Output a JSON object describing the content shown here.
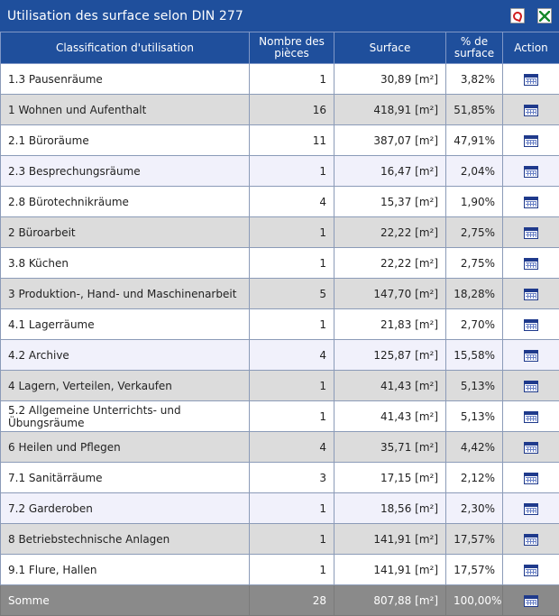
{
  "header": {
    "title": "Utilisation des surface selon DIN 277"
  },
  "columns": {
    "classification": "Classification d'utilisation",
    "count_line1": "Nombre des",
    "count_line2": "pièces",
    "surface": "Surface",
    "percent_line1": "% de",
    "percent_line2": "surface",
    "action": "Action"
  },
  "rows": [
    {
      "label": "1.3 Pausenräume",
      "count": "1",
      "surface": "30,89 [m²]",
      "percent": "3,82%"
    },
    {
      "label": "1 Wohnen und Aufenthalt",
      "count": "16",
      "surface": "418,91 [m²]",
      "percent": "51,85%"
    },
    {
      "label": "2.1 Büroräume",
      "count": "11",
      "surface": "387,07 [m²]",
      "percent": "47,91%"
    },
    {
      "label": "2.3 Besprechungsräume",
      "count": "1",
      "surface": "16,47 [m²]",
      "percent": "2,04%"
    },
    {
      "label": "2.8 Bürotechnikräume",
      "count": "4",
      "surface": "15,37 [m²]",
      "percent": "1,90%"
    },
    {
      "label": "2 Büroarbeit",
      "count": "1",
      "surface": "22,22 [m²]",
      "percent": "2,75%"
    },
    {
      "label": "3.8 Küchen",
      "count": "1",
      "surface": "22,22 [m²]",
      "percent": "2,75%"
    },
    {
      "label": "3 Produktion-, Hand- und Maschinenarbeit",
      "count": "5",
      "surface": "147,70 [m²]",
      "percent": "18,28%"
    },
    {
      "label": "4.1 Lagerräume",
      "count": "1",
      "surface": "21,83 [m²]",
      "percent": "2,70%"
    },
    {
      "label": "4.2 Archive",
      "count": "4",
      "surface": "125,87 [m²]",
      "percent": "15,58%"
    },
    {
      "label": "4 Lagern, Verteilen, Verkaufen",
      "count": "1",
      "surface": "41,43 [m²]",
      "percent": "5,13%"
    },
    {
      "label": "5.2 Allgemeine Unterrichts- und Übungsräume",
      "count": "1",
      "surface": "41,43 [m²]",
      "percent": "5,13%"
    },
    {
      "label": "6 Heilen und Pflegen",
      "count": "4",
      "surface": "35,71 [m²]",
      "percent": "4,42%"
    },
    {
      "label": "7.1 Sanitärräume",
      "count": "3",
      "surface": "17,15 [m²]",
      "percent": "2,12%"
    },
    {
      "label": "7.2 Garderoben",
      "count": "1",
      "surface": "18,56 [m²]",
      "percent": "2,30%"
    },
    {
      "label": "8 Betriebstechnische Anlagen",
      "count": "1",
      "surface": "141,91 [m²]",
      "percent": "17,57%"
    },
    {
      "label": "9.1 Flure, Hallen",
      "count": "1",
      "surface": "141,91 [m²]",
      "percent": "17,57%"
    }
  ],
  "footer": {
    "label": "Somme",
    "count": "28",
    "surface": "807,88 [m²]",
    "percent": "100,00%"
  }
}
